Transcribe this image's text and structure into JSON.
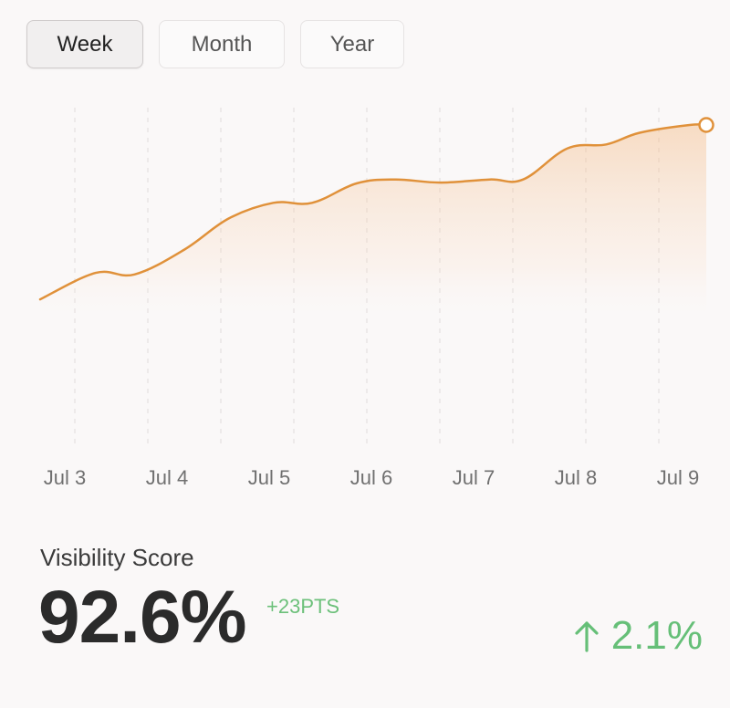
{
  "tabs": [
    {
      "label": "Week",
      "active": true
    },
    {
      "label": "Month",
      "active": false
    },
    {
      "label": "Year",
      "active": false
    }
  ],
  "chart_data": {
    "type": "area",
    "x": [
      "Jul 3",
      "Jul 4",
      "Jul 5",
      "Jul 6",
      "Jul 7",
      "Jul 8",
      "Jul 9"
    ],
    "line_color": "#e0913a",
    "fill_color": "#f6c9a0",
    "grid": "vertical dashed",
    "series": [
      {
        "points": [
          [
            0.0,
            69.6
          ],
          [
            0.5,
            73.0
          ],
          [
            0.85,
            72.8
          ],
          [
            1.3,
            76.0
          ],
          [
            1.7,
            80.0
          ],
          [
            2.1,
            82.0
          ],
          [
            2.45,
            82.0
          ],
          [
            2.85,
            84.5
          ],
          [
            3.2,
            85.0
          ],
          [
            3.6,
            84.6
          ],
          [
            4.05,
            85.0
          ],
          [
            4.35,
            85.0
          ],
          [
            4.75,
            89.0
          ],
          [
            5.1,
            89.5
          ],
          [
            5.4,
            91.0
          ],
          [
            5.85,
            92.0
          ],
          [
            6.0,
            92.0
          ]
        ]
      }
    ]
  },
  "score": {
    "label": "Visibility Score",
    "value": "92.6%",
    "points_change": "+23PTS",
    "percent_change": "2.1%",
    "change_icon": "arrow-up-icon",
    "positive_color": "#66bf78"
  }
}
